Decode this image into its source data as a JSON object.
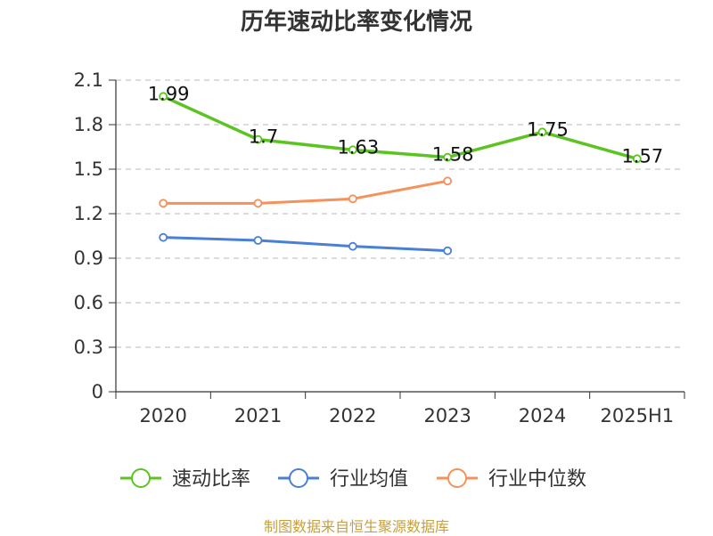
{
  "chart_data": {
    "type": "line",
    "title": "历年速动比率变化情况",
    "categories": [
      "2020",
      "2021",
      "2022",
      "2023",
      "2024",
      "2025H1"
    ],
    "yticks": [
      "0",
      "0.3",
      "0.6",
      "0.9",
      "1.2",
      "1.5",
      "1.8",
      "2.1"
    ],
    "ylim": [
      0,
      2.1
    ],
    "grid": true,
    "legend_position": "bottom",
    "series": [
      {
        "name": "速动比率",
        "color": "#5cc421",
        "values": [
          1.99,
          1.7,
          1.63,
          1.58,
          1.75,
          1.57
        ],
        "labels": [
          "1.99",
          "1.7",
          "1.63",
          "1.58",
          "1.75",
          "1.57"
        ]
      },
      {
        "name": "行业均值",
        "color": "#4a7fd6",
        "values": [
          1.04,
          1.02,
          0.98,
          0.95,
          null,
          null
        ]
      },
      {
        "name": "行业中位数",
        "color": "#f5915a",
        "values": [
          1.27,
          1.27,
          1.3,
          1.42,
          null,
          null
        ]
      }
    ]
  },
  "source_note": "制图数据来自恒生聚源数据库"
}
